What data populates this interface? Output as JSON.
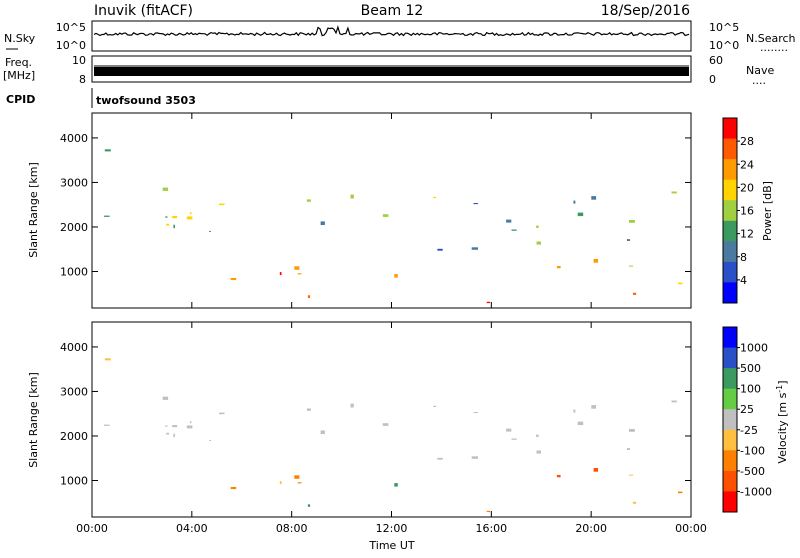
{
  "header": {
    "station": "Inuvik (fitACF)",
    "beam": "Beam 12",
    "date": "18/Sep/2016"
  },
  "summary_rows": {
    "nsky": {
      "label": "N.Sky",
      "ticks": [
        "10^5",
        "10^0"
      ]
    },
    "nsearch": {
      "label": "N.Search",
      "dots": "........",
      "ticks": [
        "10^5",
        "10^0"
      ]
    },
    "freq": {
      "label_top": "Freq.",
      "label_unit": "[MHz]",
      "tick_top": "10",
      "tick_bottom": "8"
    },
    "nave": {
      "label": "Nave",
      "dots": "....",
      "ticks": [
        "60",
        "0"
      ]
    },
    "cpid": {
      "label": "CPID",
      "program": "twofsound 3503"
    }
  },
  "chart_data": [
    {
      "type": "heatmap",
      "title": "",
      "xlabel": "",
      "ylabel": "Slant Range [km]",
      "xlim": [
        0,
        24
      ],
      "ylim": [
        180,
        4560
      ],
      "yticks": [
        "1000",
        "2000",
        "3000",
        "4000"
      ],
      "colorbar": {
        "label": "Power [dB]",
        "ticks": [
          "28",
          "24",
          "20",
          "16",
          "12",
          "8",
          "4"
        ],
        "colors": [
          "#ff0000",
          "#ff5a00",
          "#ff9a00",
          "#ffd400",
          "#a0d040",
          "#3a9a60",
          "#4a7aa0",
          "#2a50c8",
          "#0000ff"
        ]
      }
    },
    {
      "type": "heatmap",
      "title": "",
      "xlabel": "Time UT",
      "ylabel": "Slant Range [km]",
      "xlim": [
        0,
        24
      ],
      "ylim": [
        180,
        4560
      ],
      "xticks": [
        "00:00",
        "04:00",
        "08:00",
        "12:00",
        "16:00",
        "20:00",
        "00:00"
      ],
      "yticks": [
        "1000",
        "2000",
        "3000",
        "4000"
      ],
      "colorbar": {
        "label": "Velocity [m s^-1]",
        "ticks": [
          "1000",
          "500",
          "100",
          "25",
          "-25",
          "-100",
          "-500",
          "-1000"
        ],
        "colors": [
          "#0000ff",
          "#2a50c8",
          "#3a9a60",
          "#66cc44",
          "#c0c0c0",
          "#ffc040",
          "#ff8000",
          "#ff5000",
          "#ff0000"
        ]
      }
    }
  ]
}
